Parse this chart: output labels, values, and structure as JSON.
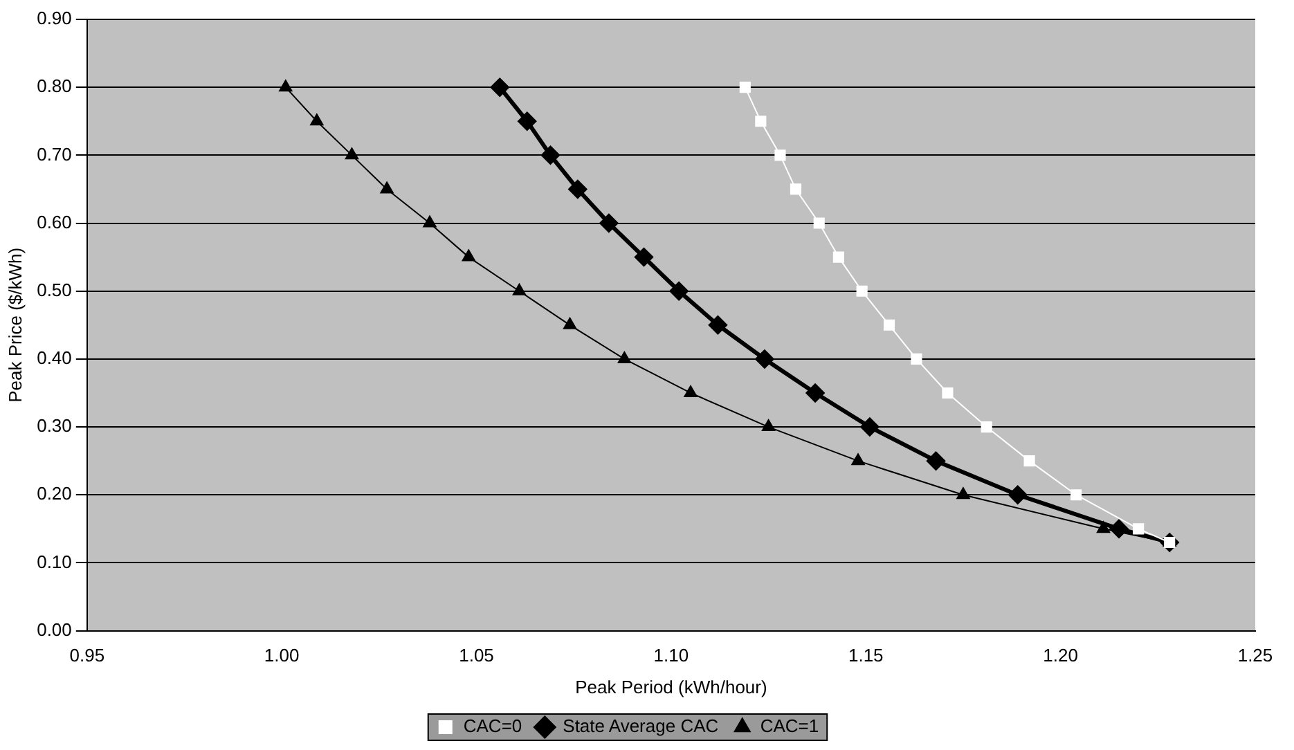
{
  "chart_data": {
    "type": "line",
    "xlabel": "Peak Period (kWh/hour)",
    "ylabel": "Peak Price ($/kWh)",
    "xlim": [
      0.95,
      1.25
    ],
    "xticks": [
      {
        "value": 0.95,
        "label": "0.95"
      },
      {
        "value": 1.0,
        "label": "1.00"
      },
      {
        "value": 1.05,
        "label": "1.05"
      },
      {
        "value": 1.1,
        "label": "1.10"
      },
      {
        "value": 1.15,
        "label": "1.15"
      },
      {
        "value": 1.2,
        "label": "1.20"
      },
      {
        "value": 1.25,
        "label": "1.25"
      }
    ],
    "ylim": [
      0,
      0.9
    ],
    "yticks": [
      {
        "value": 0,
        "label": "0.00"
      },
      {
        "value": 0.1,
        "label": "0.10"
      },
      {
        "value": 0.2,
        "label": "0.20"
      },
      {
        "value": 0.3,
        "label": "0.30"
      },
      {
        "value": 0.4,
        "label": "0.40"
      },
      {
        "value": 0.5,
        "label": "0.50"
      },
      {
        "value": 0.6,
        "label": "0.60"
      },
      {
        "value": 0.7,
        "label": "0.70"
      },
      {
        "value": 0.8,
        "label": "0.80"
      },
      {
        "value": 0.9,
        "label": "0.90"
      }
    ],
    "grid": "y",
    "legend": "bottom",
    "series": [
      {
        "name": "CAC=0",
        "color": "#ffffff",
        "marker": "square",
        "x": [
          1.119,
          1.123,
          1.128,
          1.132,
          1.138,
          1.143,
          1.149,
          1.156,
          1.163,
          1.171,
          1.181,
          1.192,
          1.204,
          1.22,
          1.228
        ],
        "values": [
          0.8,
          0.75,
          0.7,
          0.65,
          0.6,
          0.55,
          0.5,
          0.45,
          0.4,
          0.35,
          0.3,
          0.25,
          0.2,
          0.15,
          0.13
        ]
      },
      {
        "name": "State Average CAC",
        "color": "#000000",
        "marker": "diamond",
        "x": [
          1.056,
          1.063,
          1.069,
          1.076,
          1.084,
          1.093,
          1.102,
          1.112,
          1.124,
          1.137,
          1.151,
          1.168,
          1.189,
          1.215,
          1.228
        ],
        "values": [
          0.8,
          0.75,
          0.7,
          0.65,
          0.6,
          0.55,
          0.5,
          0.45,
          0.4,
          0.35,
          0.3,
          0.25,
          0.2,
          0.15,
          0.13
        ]
      },
      {
        "name": "CAC=1",
        "color": "#000000",
        "marker": "triangle",
        "x": [
          1.001,
          1.009,
          1.018,
          1.027,
          1.038,
          1.048,
          1.061,
          1.074,
          1.088,
          1.105,
          1.125,
          1.148,
          1.175,
          1.211,
          1.228
        ],
        "values": [
          0.8,
          0.75,
          0.7,
          0.65,
          0.6,
          0.55,
          0.5,
          0.45,
          0.4,
          0.35,
          0.3,
          0.25,
          0.2,
          0.15,
          0.13
        ]
      }
    ]
  }
}
